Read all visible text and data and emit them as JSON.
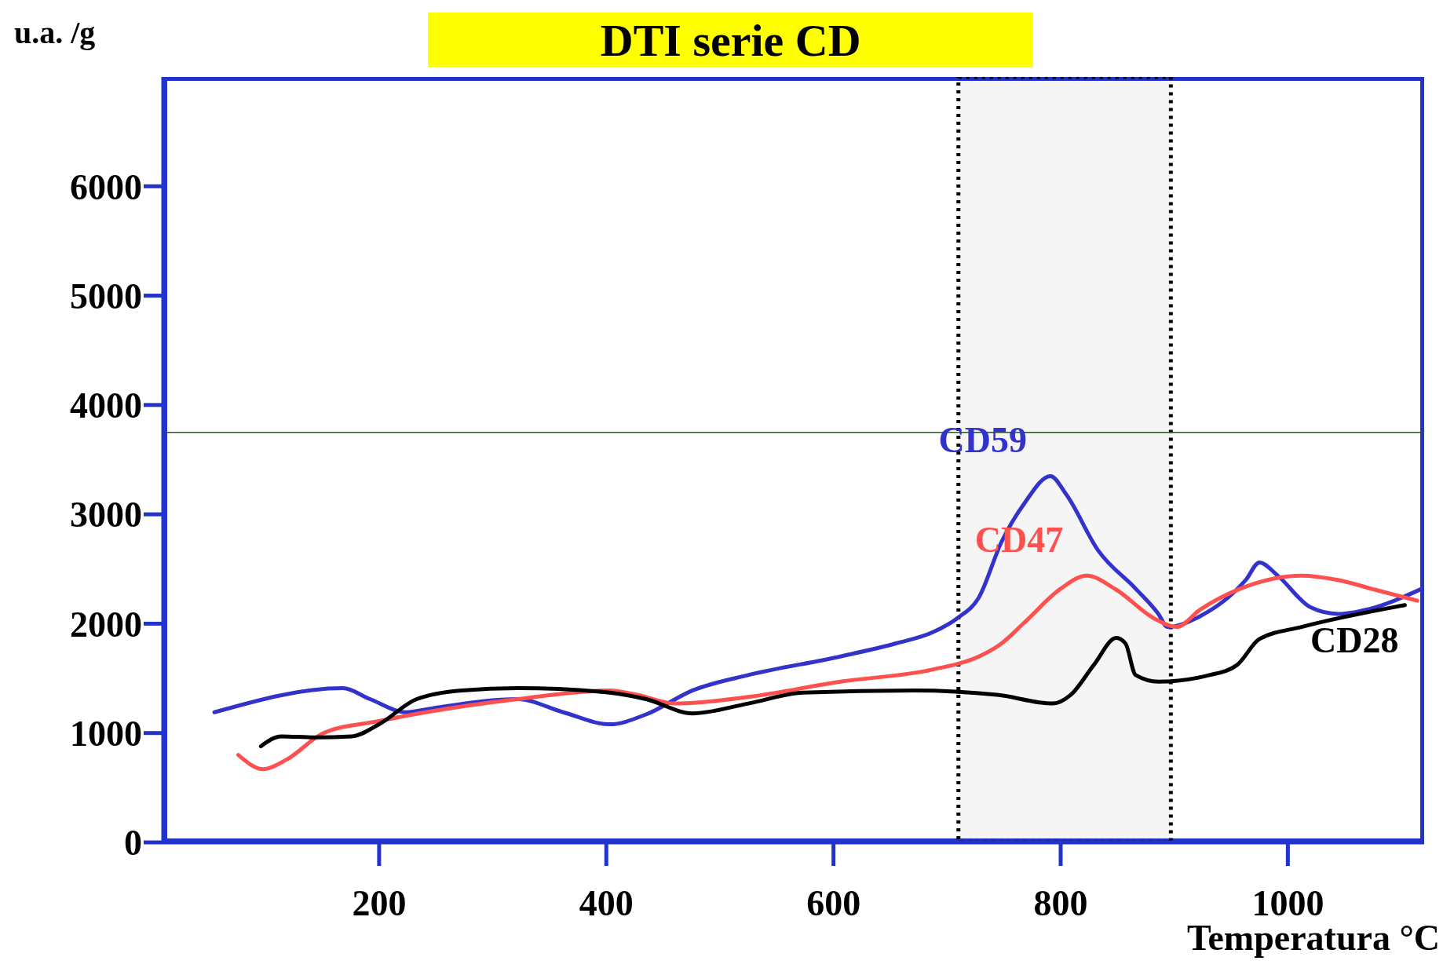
{
  "chart_data": {
    "type": "line",
    "title": "DTI serie CD",
    "xlabel": "Temperatura °C",
    "ylabel": "u.a. /g",
    "xlim": [
      10,
      1120
    ],
    "xticks": [
      200,
      400,
      600,
      800,
      1000
    ],
    "ylim": [
      0,
      7000
    ],
    "yticks": [
      0,
      1000,
      2000,
      3000,
      4000,
      5000,
      6000
    ],
    "marker": "none",
    "line_style": "solid",
    "series": [
      {
        "name": "CD59",
        "color": "#3333cc",
        "x": [
          55,
          168,
          192,
          224,
          249,
          322,
          362,
          403,
          435,
          476,
          525,
          606,
          655,
          687,
          709,
          728,
          748,
          768,
          791,
          805,
          833,
          866,
          886,
          894,
          923,
          963,
          975,
          991,
          1020,
          1044,
          1077,
          1118
        ],
        "values": [
          1190,
          1410,
          1310,
          1190,
          1230,
          1310,
          1190,
          1080,
          1170,
          1390,
          1530,
          1700,
          1820,
          1920,
          2050,
          2240,
          2750,
          3100,
          3350,
          3180,
          2670,
          2320,
          2090,
          1970,
          2070,
          2400,
          2560,
          2440,
          2150,
          2090,
          2150,
          2320
        ]
      },
      {
        "name": "CD47",
        "color": "#ff5050",
        "x": [
          76,
          98,
          119,
          151,
          200,
          241,
          322,
          403,
          427,
          460,
          525,
          606,
          687,
          728,
          748,
          768,
          800,
          823,
          849,
          882,
          902,
          923,
          963,
          1012,
          1044,
          1077,
          1114
        ],
        "values": [
          800,
          670,
          760,
          1000,
          1110,
          1190,
          1310,
          1390,
          1350,
          1270,
          1330,
          1470,
          1580,
          1700,
          1820,
          2010,
          2320,
          2440,
          2310,
          2050,
          1970,
          2130,
          2340,
          2440,
          2400,
          2310,
          2210
        ]
      },
      {
        "name": "CD28",
        "color": "#000000",
        "x": [
          96,
          114,
          143,
          176,
          200,
          233,
          273,
          322,
          403,
          435,
          476,
          525,
          573,
          671,
          744,
          793,
          809,
          829,
          849,
          857,
          866,
          886,
          931,
          955,
          975,
          1012,
          1103
        ],
        "values": [
          880,
          970,
          960,
          970,
          1080,
          1310,
          1390,
          1410,
          1370,
          1310,
          1180,
          1270,
          1370,
          1390,
          1350,
          1270,
          1350,
          1620,
          1870,
          1820,
          1530,
          1470,
          1530,
          1620,
          1860,
          1970,
          2170
        ]
      }
    ],
    "ref_lines": [
      {
        "axis": "y",
        "value": 3750,
        "color": "#2f4f2f",
        "line_style": "solid"
      }
    ],
    "bands": [
      {
        "axis": "x",
        "from": 710,
        "to": 897,
        "color": "#000000"
      }
    ]
  }
}
